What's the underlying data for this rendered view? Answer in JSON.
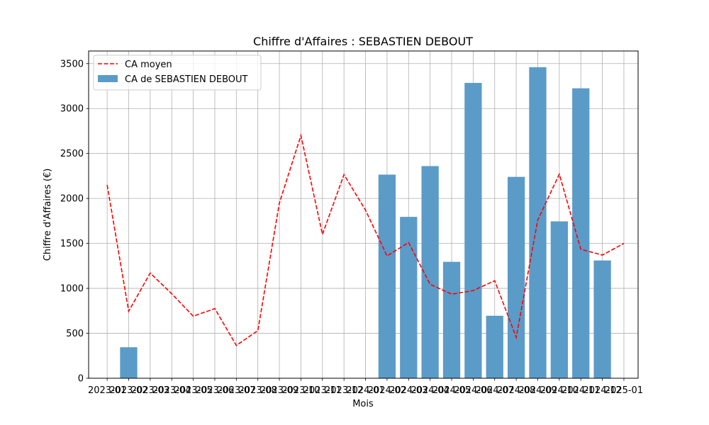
{
  "chart_data": {
    "type": "bar",
    "title": "Chiffre d'Affaires : SEBASTIEN DEBOUT",
    "xlabel": "Mois",
    "ylabel": "Chiffre d'Affaires (€)",
    "ylim": [
      0,
      3640
    ],
    "yticks": [
      0,
      500,
      1000,
      1500,
      2000,
      2500,
      3000,
      3500
    ],
    "grid": true,
    "legend_position": "upper-left",
    "categories": [
      "2023-01",
      "2023-02",
      "2023-03",
      "2023-04",
      "2023-05",
      "2023-06",
      "2023-07",
      "2023-08",
      "2023-09",
      "2023-10",
      "2023-11",
      "2023-12",
      "2024-01",
      "2024-02",
      "2024-03",
      "2024-04",
      "2024-05",
      "2024-06",
      "2024-07",
      "2024-08",
      "2024-09",
      "2024-10",
      "2024-11",
      "2024-12",
      "2025-01"
    ],
    "series": [
      {
        "name": "CA de SEBASTIEN DEBOUT",
        "type": "bar",
        "color": "#5b9bc8",
        "values": [
          null,
          345,
          null,
          null,
          null,
          null,
          null,
          null,
          null,
          null,
          null,
          null,
          null,
          2265,
          1795,
          2360,
          1295,
          3285,
          695,
          2240,
          3460,
          1745,
          3225,
          1310,
          null
        ]
      },
      {
        "name": "CA moyen",
        "type": "line",
        "style": "dashed",
        "color": "#ff0000",
        "values": [
          2150,
          745,
          1170,
          940,
          690,
          775,
          365,
          530,
          1950,
          2700,
          1600,
          2265,
          1870,
          1360,
          1510,
          1045,
          935,
          975,
          1085,
          455,
          1760,
          2270,
          1435,
          1370,
          1500
        ]
      }
    ]
  }
}
